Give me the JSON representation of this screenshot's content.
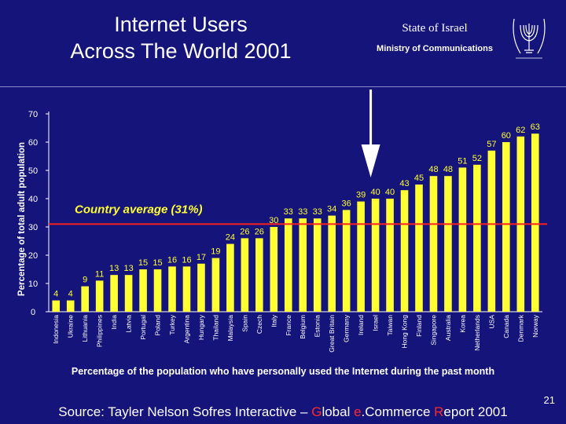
{
  "header": {
    "title_line1": "Internet Users",
    "title_line2": "Across The World 2001",
    "state": "State of Israel",
    "ministry": "Ministry of Communications",
    "emblem_icon": "menorah-emblem-icon"
  },
  "chart_data": {
    "type": "bar",
    "ylabel": "Percentage of total adult population",
    "ylim": [
      0,
      70
    ],
    "yticks": [
      0,
      10,
      20,
      30,
      40,
      50,
      60,
      70
    ],
    "categories": [
      "Indonesia",
      "Ukraine",
      "Lithuania",
      "Philippines",
      "India",
      "Latvia",
      "Portugal",
      "Poland",
      "Turkey",
      "Argentina",
      "Hungary",
      "Thailand",
      "Malaysia",
      "Spain",
      "Czech",
      "Italy",
      "France",
      "Belgium",
      "Estonia",
      "Great Britain",
      "Germany",
      "Ireland",
      "Israel",
      "Taiwan",
      "Hong Kong",
      "Finland",
      "Singapore",
      "Australia",
      "Korea",
      "Netherlands",
      "USA",
      "Canada",
      "Denmark",
      "Norway"
    ],
    "values": [
      4,
      4,
      9,
      11,
      13,
      13,
      15,
      15,
      16,
      16,
      17,
      19,
      24,
      26,
      26,
      30,
      33,
      33,
      33,
      34,
      36,
      39,
      40,
      40,
      43,
      45,
      48,
      48,
      51,
      52,
      57,
      60,
      62,
      63
    ],
    "average": {
      "value": 31,
      "label": "Country average (31%)"
    },
    "highlight_category": "Israel",
    "colors": {
      "bar": "#ffff33",
      "average_line": "#ff2020",
      "label": "#ffff33"
    }
  },
  "footer": {
    "caption": "Percentage of the population who have personally used the Internet during the past month",
    "page_number": "21",
    "source_a": "Source: Tayler Nelson Sofres Interactive – ",
    "source_g": "G",
    "source_b": "lobal ",
    "source_e": "e",
    "source_c": ".Commerce ",
    "source_r": "R",
    "source_d": "eport 2001"
  }
}
